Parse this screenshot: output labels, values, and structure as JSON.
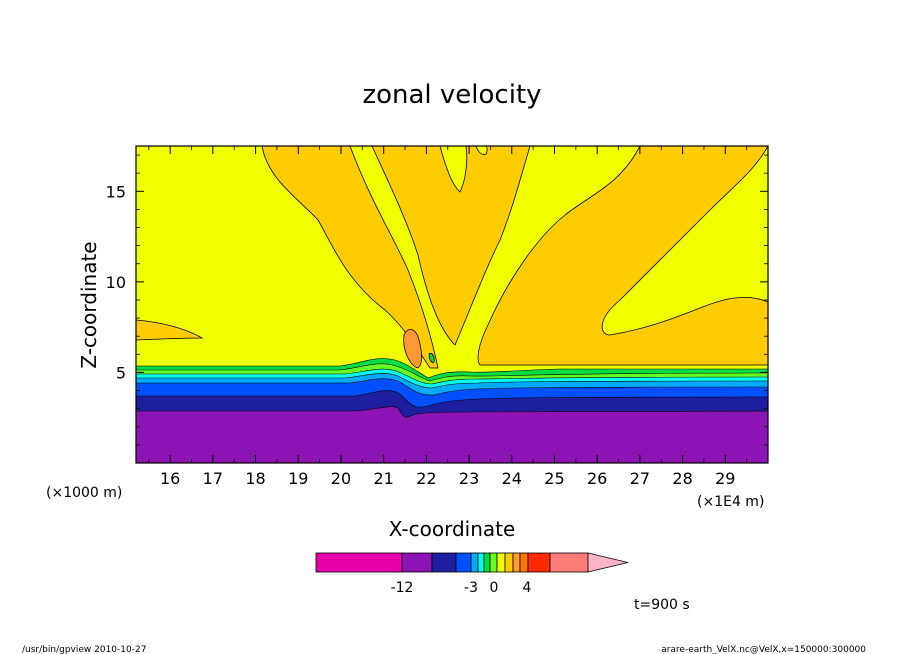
{
  "chart_data": {
    "type": "contour",
    "title": "zonal velocity",
    "xlabel": "X-coordinate",
    "ylabel": "Z-coordinate",
    "x_unit_label": "(×1E4 m)",
    "y_unit_label": "(×1000 m)",
    "xlim": [
      15.2,
      30.0
    ],
    "ylim": [
      0,
      17.5
    ],
    "x_ticks": [
      "16",
      "17",
      "18",
      "19",
      "20",
      "21",
      "22",
      "23",
      "24",
      "25",
      "26",
      "27",
      "28",
      "29"
    ],
    "x_tick_values": [
      16,
      17,
      18,
      19,
      20,
      21,
      22,
      23,
      24,
      25,
      26,
      27,
      28,
      29
    ],
    "y_ticks": [
      "5",
      "10",
      "15"
    ],
    "y_tick_values": [
      5,
      10,
      15
    ],
    "time_label": "t=900 s",
    "colorbar": {
      "tick_labels": [
        "-12",
        "-3",
        "0",
        "4"
      ],
      "colors": {
        "magenta": "#e600aa",
        "purple": "#8c14b4",
        "dark_blue": "#1e1ea0",
        "blue": "#0050ff",
        "light_blue": "#00aaff",
        "cyan": "#00ffee",
        "green": "#00dd44",
        "light_green": "#66ff22",
        "yellow": "#f0ff00",
        "gold": "#ffcc00",
        "orange": "#ff9933",
        "dark_orange": "#ff7700",
        "red": "#ff2a00",
        "salmon": "#ff7b78",
        "pink": "#ffb4c8"
      }
    }
  },
  "footer": {
    "left": "/usr/bin/gpview   2010-10-27",
    "right": "arare-earth_VelX.nc@VelX,x=150000:300000"
  }
}
